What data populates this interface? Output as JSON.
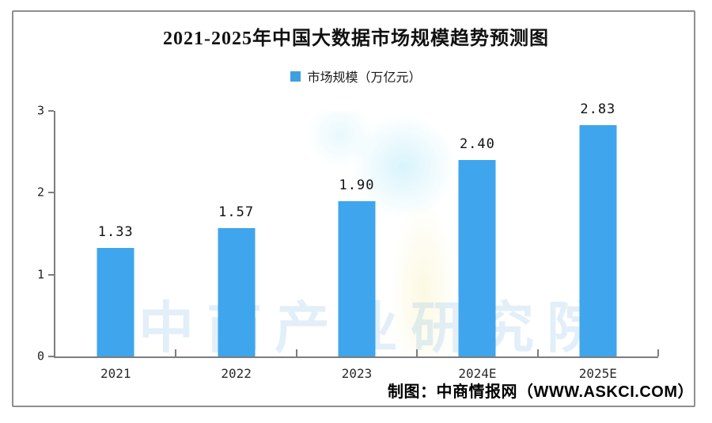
{
  "chart": {
    "title": "2021-2025年中国大数据市场规模趋势预测图",
    "legend_label": "市场规模（万亿元）",
    "credit": "制图：中商情报网（WWW.ASKCI.COM）",
    "watermark": "中商产业研究院"
  },
  "chart_data": {
    "type": "bar",
    "title": "2021-2025年中国大数据市场规模趋势预测图",
    "categories": [
      "2021",
      "2022",
      "2023",
      "2024E",
      "2025E"
    ],
    "series": [
      {
        "name": "市场规模（万亿元）",
        "values": [
          1.33,
          1.57,
          1.9,
          2.4,
          2.83
        ],
        "value_labels": [
          "1.33",
          "1.57",
          "1.90",
          "2.40",
          "2.83"
        ],
        "color": "#3fa5ec"
      }
    ],
    "xlabel": "",
    "ylabel": "",
    "ylim": [
      0,
      3
    ],
    "yticks": [
      0,
      1,
      2,
      3
    ],
    "grid": false,
    "legend_position": "top-center",
    "unit": "万亿元",
    "annotations": [
      "制图：中商情报网（WWW.ASKCI.COM）"
    ]
  },
  "colors": {
    "bar": "#3fa5ec",
    "legend_swatch": "#3fa0de",
    "axis": "#7d7d7d",
    "frame_border": "#8e8e8e",
    "text": "#111111"
  }
}
